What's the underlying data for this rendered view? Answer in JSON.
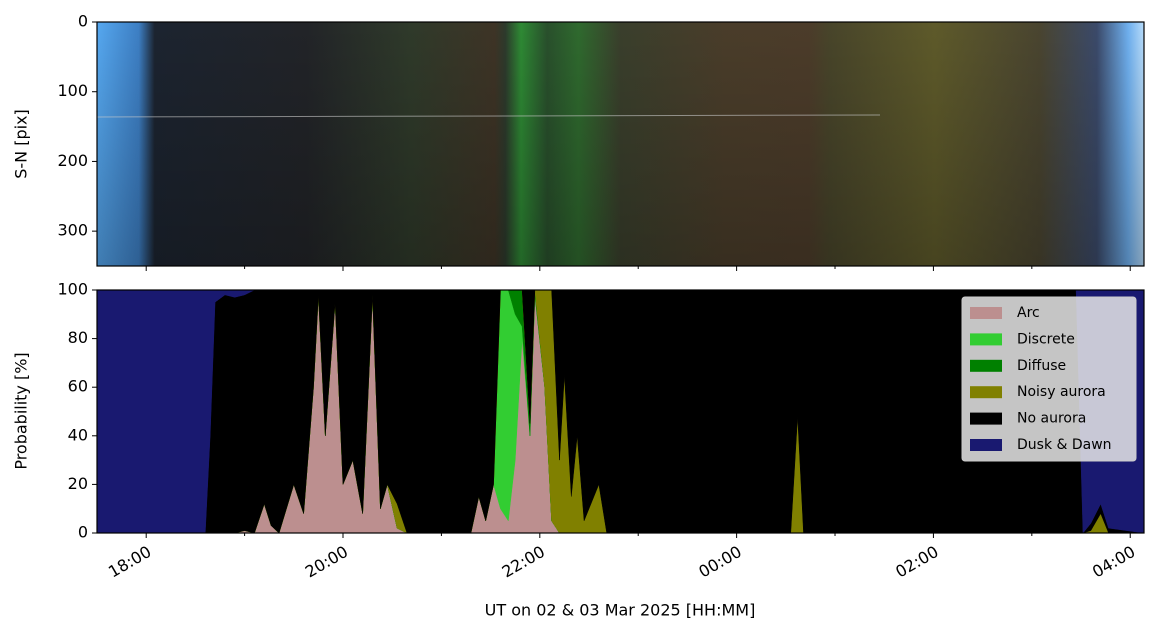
{
  "chart_data": [
    {
      "type": "keogram",
      "ylabel": "S-N [pix]",
      "xlim": [
        17.5,
        28.14
      ],
      "ylim": [
        350,
        0
      ],
      "yticks": [
        0,
        100,
        200,
        300
      ],
      "xticks": [
        18,
        20,
        22,
        24,
        26,
        28
      ],
      "xminor_ticks": [
        19,
        21,
        23,
        25,
        27
      ]
    },
    {
      "type": "stacked_area",
      "ylabel": "Probability [%]",
      "xlabel": "UT on 02 & 03 Mar 2025 [HH:MM]",
      "xlim": [
        17.5,
        28.14
      ],
      "ylim": [
        0,
        100
      ],
      "yticks": [
        0,
        20,
        40,
        60,
        80,
        100
      ],
      "xticks": [
        {
          "value": 18,
          "label": "18:00"
        },
        {
          "value": 20,
          "label": "20:00"
        },
        {
          "value": 22,
          "label": "22:00"
        },
        {
          "value": 24,
          "label": "00:00"
        },
        {
          "value": 26,
          "label": "02:00"
        },
        {
          "value": 28,
          "label": "04:00"
        }
      ],
      "xminor_ticks": [
        19,
        21,
        23,
        25,
        27
      ],
      "legend": "upper right",
      "x": [
        17.5,
        18.55,
        18.6,
        18.65,
        18.7,
        18.8,
        18.9,
        19.0,
        19.1,
        19.2,
        19.27,
        19.35,
        19.5,
        19.6,
        19.7,
        19.75,
        19.82,
        19.92,
        20.0,
        20.1,
        20.2,
        20.3,
        20.38,
        20.45,
        20.55,
        20.65,
        21.3,
        21.38,
        21.45,
        21.53,
        21.6,
        21.68,
        21.75,
        21.82,
        21.9,
        21.95,
        22.05,
        22.12,
        22.2,
        22.25,
        22.32,
        22.38,
        22.45,
        22.6,
        22.68,
        24.55,
        24.62,
        24.68,
        27.45,
        27.52,
        27.6,
        27.7,
        27.78,
        28.14
      ],
      "series": [
        {
          "name": "Arc",
          "color": "#bc8f8f",
          "values": [
            0,
            0,
            0,
            0,
            0,
            0,
            0,
            1,
            0,
            12,
            3,
            0,
            20,
            8,
            60,
            98,
            40,
            95,
            20,
            30,
            8,
            98,
            10,
            20,
            2,
            0,
            0,
            15,
            5,
            20,
            10,
            5,
            30,
            80,
            40,
            98,
            60,
            5,
            0,
            0,
            0,
            0,
            0,
            0,
            0,
            0,
            0,
            0,
            0,
            0,
            0,
            0,
            0,
            0
          ]
        },
        {
          "name": "Discrete",
          "color": "#32cd32",
          "values": [
            0,
            0,
            0,
            0,
            0,
            0,
            0,
            0,
            0,
            0,
            0,
            0,
            0,
            0,
            0,
            0,
            0,
            0,
            0,
            0,
            0,
            0,
            0,
            0,
            0,
            0,
            0,
            0,
            0,
            0,
            90,
            95,
            60,
            5,
            0,
            0,
            0,
            0,
            0,
            0,
            0,
            0,
            0,
            0,
            0,
            0,
            0,
            0,
            0,
            0,
            0,
            0,
            0,
            0
          ]
        },
        {
          "name": "Diffuse",
          "color": "#008000",
          "values": [
            0,
            0,
            0,
            0,
            0,
            0,
            0,
            0,
            0,
            0,
            0,
            0,
            0,
            0,
            0,
            0,
            0,
            0,
            0,
            0,
            0,
            0,
            0,
            0,
            0,
            0,
            0,
            0,
            0,
            0,
            0,
            0,
            10,
            15,
            5,
            2,
            0,
            0,
            0,
            0,
            0,
            0,
            0,
            0,
            0,
            0,
            0,
            0,
            0,
            0,
            0,
            0,
            0,
            0
          ]
        },
        {
          "name": "Noisy aurora",
          "color": "#808000",
          "values": [
            0,
            0,
            0,
            0,
            0,
            0,
            0,
            0,
            0,
            0,
            0,
            0,
            0,
            0,
            0,
            0,
            0,
            0,
            0,
            0,
            0,
            0,
            0,
            0,
            10,
            0,
            0,
            0,
            0,
            0,
            0,
            0,
            0,
            0,
            0,
            0,
            40,
            95,
            30,
            65,
            15,
            40,
            5,
            20,
            0,
            0,
            48,
            0,
            0,
            0,
            1,
            8,
            0,
            0
          ]
        },
        {
          "name": "No aurora",
          "color": "#000000",
          "values": [
            0,
            0,
            0,
            40,
            95,
            98,
            97,
            97,
            100,
            88,
            97,
            100,
            80,
            92,
            40,
            2,
            60,
            5,
            80,
            70,
            92,
            2,
            90,
            80,
            88,
            100,
            100,
            85,
            95,
            80,
            0,
            0,
            0,
            0,
            55,
            0,
            0,
            0,
            70,
            35,
            85,
            60,
            95,
            80,
            100,
            100,
            52,
            100,
            100,
            0,
            3,
            4,
            2,
            0
          ]
        },
        {
          "name": "Dusk & Dawn",
          "color": "#191970",
          "values": [
            100,
            100,
            100,
            60,
            5,
            2,
            3,
            2,
            0,
            0,
            0,
            0,
            0,
            0,
            0,
            0,
            0,
            0,
            0,
            0,
            0,
            0,
            0,
            0,
            0,
            0,
            0,
            0,
            0,
            0,
            0,
            0,
            0,
            0,
            0,
            0,
            0,
            0,
            0,
            0,
            0,
            0,
            0,
            0,
            0,
            0,
            0,
            0,
            0,
            100,
            96,
            88,
            98,
            100
          ]
        }
      ]
    }
  ]
}
